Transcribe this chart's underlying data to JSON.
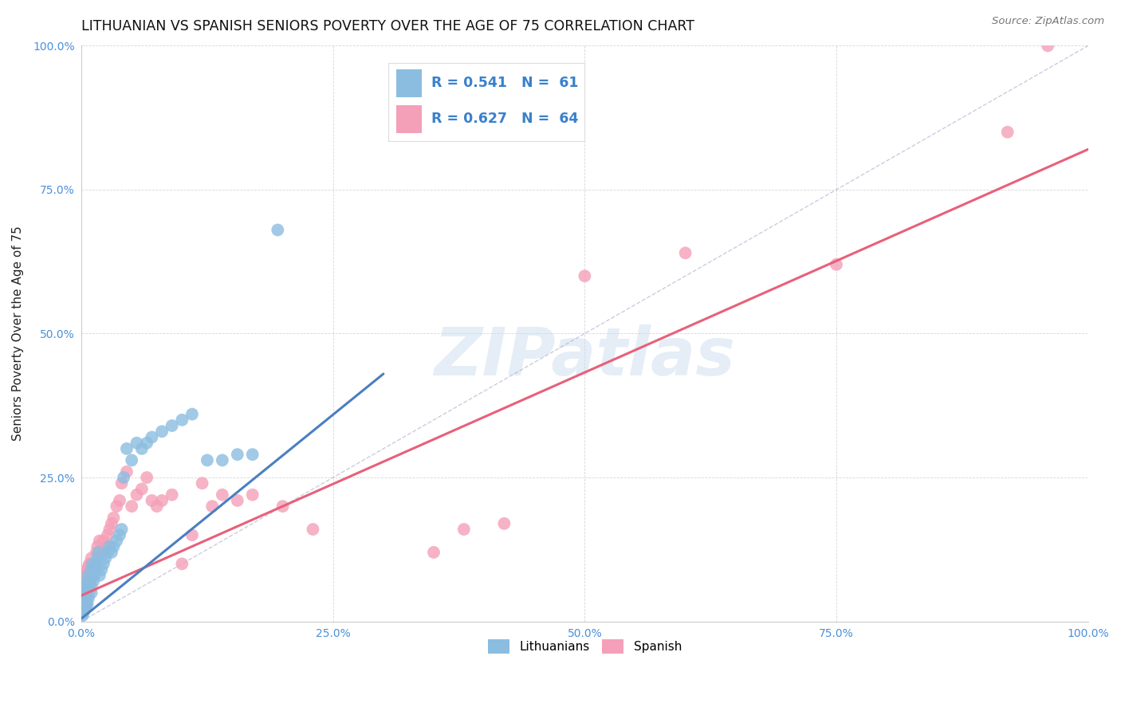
{
  "title": "LITHUANIAN VS SPANISH SENIORS POVERTY OVER THE AGE OF 75 CORRELATION CHART",
  "source": "Source: ZipAtlas.com",
  "ylabel": "Seniors Poverty Over the Age of 75",
  "xlabel": "",
  "xlim": [
    0,
    1
  ],
  "ylim": [
    0,
    1
  ],
  "xticks": [
    0,
    0.25,
    0.5,
    0.75,
    1.0
  ],
  "yticks": [
    0,
    0.25,
    0.5,
    0.75,
    1.0
  ],
  "xtick_labels": [
    "0.0%",
    "25.0%",
    "50.0%",
    "75.0%",
    "100.0%"
  ],
  "ytick_labels": [
    "0.0%",
    "25.0%",
    "50.0%",
    "75.0%",
    "100.0%"
  ],
  "watermark": "ZIPatlas",
  "background_color": "#ffffff",
  "legend_R_lit": "0.541",
  "legend_N_lit": "61",
  "legend_R_spa": "0.627",
  "legend_N_spa": "64",
  "lit_color": "#8bbde0",
  "spa_color": "#f4a0b8",
  "lit_line_color": "#4a7fc1",
  "spa_line_color": "#e8607a",
  "diag_color": "#aaaacc",
  "title_fontsize": 12.5,
  "axis_label_fontsize": 11,
  "tick_fontsize": 10,
  "lit_x": [
    0.001,
    0.001,
    0.001,
    0.001,
    0.001,
    0.002,
    0.002,
    0.002,
    0.002,
    0.002,
    0.003,
    0.003,
    0.003,
    0.003,
    0.004,
    0.004,
    0.004,
    0.005,
    0.005,
    0.006,
    0.006,
    0.007,
    0.007,
    0.008,
    0.009,
    0.01,
    0.01,
    0.011,
    0.012,
    0.013,
    0.014,
    0.015,
    0.016,
    0.017,
    0.018,
    0.02,
    0.022,
    0.024,
    0.026,
    0.028,
    0.03,
    0.032,
    0.035,
    0.038,
    0.04,
    0.042,
    0.045,
    0.05,
    0.055,
    0.06,
    0.065,
    0.07,
    0.08,
    0.09,
    0.1,
    0.11,
    0.125,
    0.14,
    0.155,
    0.17,
    0.195
  ],
  "lit_y": [
    0.01,
    0.015,
    0.02,
    0.025,
    0.03,
    0.015,
    0.02,
    0.025,
    0.03,
    0.05,
    0.02,
    0.025,
    0.035,
    0.055,
    0.025,
    0.035,
    0.06,
    0.03,
    0.06,
    0.03,
    0.07,
    0.04,
    0.08,
    0.06,
    0.07,
    0.05,
    0.09,
    0.1,
    0.07,
    0.08,
    0.09,
    0.1,
    0.11,
    0.12,
    0.08,
    0.09,
    0.1,
    0.11,
    0.12,
    0.13,
    0.12,
    0.13,
    0.14,
    0.15,
    0.16,
    0.25,
    0.3,
    0.28,
    0.31,
    0.3,
    0.31,
    0.32,
    0.33,
    0.34,
    0.35,
    0.36,
    0.28,
    0.28,
    0.29,
    0.29,
    0.68
  ],
  "spa_x": [
    0.001,
    0.001,
    0.001,
    0.002,
    0.002,
    0.002,
    0.003,
    0.003,
    0.003,
    0.004,
    0.004,
    0.005,
    0.005,
    0.006,
    0.006,
    0.007,
    0.007,
    0.008,
    0.008,
    0.009,
    0.01,
    0.01,
    0.011,
    0.012,
    0.013,
    0.015,
    0.016,
    0.018,
    0.02,
    0.022,
    0.024,
    0.026,
    0.028,
    0.03,
    0.032,
    0.035,
    0.038,
    0.04,
    0.045,
    0.05,
    0.055,
    0.06,
    0.065,
    0.07,
    0.075,
    0.08,
    0.09,
    0.1,
    0.11,
    0.12,
    0.13,
    0.14,
    0.155,
    0.17,
    0.2,
    0.23,
    0.35,
    0.38,
    0.42,
    0.5,
    0.6,
    0.75,
    0.92,
    0.96
  ],
  "spa_y": [
    0.02,
    0.03,
    0.05,
    0.02,
    0.04,
    0.06,
    0.025,
    0.055,
    0.07,
    0.03,
    0.08,
    0.04,
    0.085,
    0.045,
    0.09,
    0.05,
    0.095,
    0.06,
    0.1,
    0.07,
    0.06,
    0.11,
    0.08,
    0.09,
    0.1,
    0.12,
    0.13,
    0.14,
    0.12,
    0.14,
    0.13,
    0.15,
    0.16,
    0.17,
    0.18,
    0.2,
    0.21,
    0.24,
    0.26,
    0.2,
    0.22,
    0.23,
    0.25,
    0.21,
    0.2,
    0.21,
    0.22,
    0.1,
    0.15,
    0.24,
    0.2,
    0.22,
    0.21,
    0.22,
    0.2,
    0.16,
    0.12,
    0.16,
    0.17,
    0.6,
    0.64,
    0.62,
    0.85,
    1.0
  ],
  "lit_line_x": [
    0.0,
    0.3
  ],
  "lit_line_y": [
    0.005,
    0.43
  ],
  "spa_line_x": [
    0.0,
    1.0
  ],
  "spa_line_y": [
    0.045,
    0.82
  ]
}
